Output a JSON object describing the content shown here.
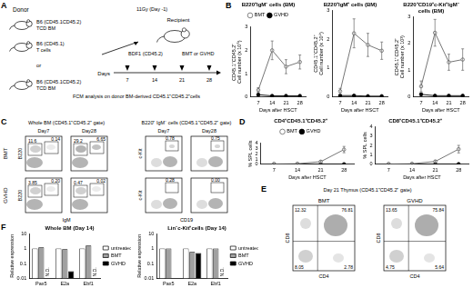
{
  "panel_labels": [
    "A",
    "B",
    "C",
    "D",
    "E",
    "F"
  ],
  "schematic": {
    "donor": "Donor",
    "recipient": "Recipient",
    "donor_groups": [
      [
        "B6 (CD45.1CD45.2)",
        "TCD BM"
      ],
      [
        "B6 (CD45.1)",
        "T cells"
      ],
      [
        "B6 (CD45.1CD45.2)",
        "TCD BM"
      ]
    ],
    "or": "or",
    "irradiation": "11Gy (Day -1)",
    "recipient_strain": "BDF1 (CD45.2)",
    "outcome": "BMT or GVHD",
    "timeline_label": "Days",
    "timeline_days": [
      7,
      14,
      21,
      28
    ],
    "analysis": "FCM analysis on donor BM-derived CD45.1⁺CD45.2⁺cells"
  },
  "flow_C": {
    "left": {
      "title": "Whole BM (CD45.1⁺CD45.2⁺ gate)",
      "x_axis": "IgM",
      "y_axis": "B220",
      "columns": [
        "Day7",
        "Day28"
      ],
      "rows": [
        "BMT",
        "GVHD"
      ],
      "gates": [
        [
          [
            "11.6",
            "0.14"
          ],
          [
            "29.2",
            "6.65"
          ]
        ],
        [
          [
            "3.85",
            "0.20"
          ],
          [
            "0.47",
            "0.02"
          ]
        ]
      ]
    },
    "right": {
      "title": "B220⁺ IgM⁻ cells (CD45.1⁺CD45.2⁺ gate)",
      "x_axis": "CD19",
      "y_axis": "c-Kit",
      "columns": [
        "Day7",
        "Day28"
      ],
      "rows": [
        "BMT",
        "GVHD"
      ],
      "gates": [
        [
          [
            "0.78"
          ],
          [
            "0.75"
          ]
        ],
        [
          [
            "0.28"
          ],
          [
            "0.00"
          ]
        ]
      ]
    }
  },
  "flow_E": {
    "title": "Day 21 Thymus (CD45.1⁺CD45.2⁺ gate)",
    "x_axis": "CD4",
    "y_axis": "CD8",
    "plots": [
      {
        "name": "BMT",
        "quadrants": {
          "ul": "12.32",
          "ur": "76.81",
          "ll": "8.05",
          "lr": "2.78"
        }
      },
      {
        "name": "GVHD",
        "quadrants": {
          "ul": "13.65",
          "ur": "75.84",
          "ll": "4.75",
          "lr": "5.64"
        }
      }
    ]
  },
  "chart_data": [
    {
      "type": "line",
      "title": "B220⁺IgM⁻ cells (BM)",
      "x_label": "Days after HSCT",
      "y_label": [
        "CD45.1⁺CD45.2⁺",
        "Cell number (x 10⁵)"
      ],
      "x": [
        7,
        14,
        21,
        28
      ],
      "xlim": [
        3,
        31
      ],
      "xticks": [
        7,
        14,
        21,
        28
      ],
      "ylim": [
        0,
        3
      ],
      "yticks": [
        0,
        1,
        2,
        3
      ],
      "grid": false,
      "legend": "top",
      "series": [
        {
          "name": "BMT",
          "color": "#666666",
          "marker": "open_circle",
          "line_style": "solid",
          "values": [
            0.3,
            2.0,
            1.3,
            1.5
          ],
          "errors": [
            0.1,
            0.4,
            0.3,
            0.3
          ]
        },
        {
          "name": "GVHD",
          "color": "#000000",
          "marker": "circle",
          "line_style": "solid",
          "values": [
            0.1,
            0.05,
            0.05,
            0.05
          ],
          "errors": [
            0.05,
            0.02,
            0.02,
            0.02
          ]
        }
      ]
    },
    {
      "type": "line",
      "title": "B220⁺IgM⁺ cells (BM)",
      "x_label": "Days after HSCT",
      "y_label": [
        "CD45.1⁺CD45.2⁺",
        "Cell number (x 10⁴)"
      ],
      "x": [
        7,
        14,
        21,
        28
      ],
      "xlim": [
        3,
        31
      ],
      "xticks": [
        7,
        14,
        21,
        28
      ],
      "ylim": [
        0,
        3
      ],
      "yticks": [
        0,
        1,
        2,
        3
      ],
      "grid": false,
      "series": [
        {
          "name": "BMT",
          "color": "#666666",
          "marker": "open_circle",
          "line_style": "solid",
          "values": [
            0.2,
            2.2,
            1.8,
            1.6
          ],
          "errors": [
            0.1,
            0.5,
            0.4,
            0.3
          ]
        },
        {
          "name": "GVHD",
          "color": "#000000",
          "marker": "circle",
          "line_style": "solid",
          "values": [
            0.05,
            0.05,
            0.03,
            0.03
          ],
          "errors": [
            0.02,
            0.02,
            0.02,
            0.02
          ]
        }
      ]
    },
    {
      "type": "line",
      "title": [
        "B220⁺CD19⁺c-Kit⁺IgM⁻",
        "cells (BM)"
      ],
      "x_label": "Days after HSCT",
      "y_label": [
        "CD45.1⁺CD45.2⁺",
        "Cell number (x 10³)"
      ],
      "x": [
        7,
        14,
        21,
        28
      ],
      "xlim": [
        3,
        31
      ],
      "xticks": [
        7,
        14,
        21,
        28
      ],
      "ylim": [
        0,
        3
      ],
      "yticks": [
        0,
        1,
        2,
        3
      ],
      "grid": false,
      "series": [
        {
          "name": "BMT",
          "color": "#666666",
          "marker": "open_circle",
          "line_style": "solid",
          "values": [
            0.4,
            2.4,
            1.3,
            1.4
          ],
          "errors": [
            0.2,
            0.5,
            0.3,
            0.4
          ]
        },
        {
          "name": "GVHD",
          "color": "#000000",
          "marker": "circle",
          "line_style": "solid",
          "values": [
            0.1,
            0.05,
            0.05,
            0.05
          ],
          "errors": [
            0.05,
            0.02,
            0.02,
            0.02
          ]
        }
      ]
    },
    {
      "type": "line",
      "title": "CD4⁺CD45.1⁺CD45.2⁺",
      "x_label": "Days after HSCT",
      "y_label": "% SPL cells",
      "x": [
        7,
        14,
        21,
        28
      ],
      "xlim": [
        3,
        31
      ],
      "xticks": [
        7,
        14,
        21,
        28
      ],
      "ylim": [
        0,
        4
      ],
      "yticks": [
        0,
        1,
        2,
        3,
        4
      ],
      "grid": false,
      "legend": "top",
      "series": [
        {
          "name": "BMT",
          "color": "#666666",
          "marker": "open_circle",
          "line_style": "solid",
          "values": [
            0.05,
            0.1,
            0.5,
            2.8
          ],
          "errors": [
            0.02,
            0.05,
            0.2,
            0.6
          ]
        },
        {
          "name": "GVHD",
          "color": "#000000",
          "marker": "circle",
          "line_style": "solid",
          "values": [
            0.02,
            0.02,
            0.03,
            0.02
          ],
          "errors": [
            0.01,
            0.01,
            0.01,
            0.01
          ]
        }
      ]
    },
    {
      "type": "line",
      "title": "CD8⁺CD45.1⁺CD45.2⁺",
      "x_label": "Days after HSCT",
      "y_label": "% SPL cells",
      "x": [
        7,
        14,
        21,
        28
      ],
      "xlim": [
        3,
        31
      ],
      "xticks": [
        7,
        14,
        21,
        28
      ],
      "ylim": [
        0,
        4
      ],
      "yticks": [
        0,
        1,
        2,
        3,
        4
      ],
      "grid": false,
      "series": [
        {
          "name": "BMT",
          "color": "#666666",
          "marker": "open_circle",
          "line_style": "solid",
          "values": [
            0.02,
            0.05,
            0.3,
            1.6
          ],
          "errors": [
            0.01,
            0.03,
            0.1,
            0.4
          ]
        },
        {
          "name": "GVHD",
          "color": "#000000",
          "marker": "circle",
          "line_style": "solid",
          "values": [
            0.01,
            0.02,
            0.02,
            0.02
          ],
          "errors": [
            0.01,
            0.01,
            0.01,
            0.01
          ]
        }
      ]
    },
    {
      "type": "bar",
      "title": "Whole BM (Day 14)",
      "y_label": "Relative expression",
      "categories": [
        "Pax5",
        "E2a",
        "Ebf1"
      ],
      "log": "y",
      "ylim": [
        0.01,
        10
      ],
      "yticks": [
        0.01,
        0.1,
        1,
        10
      ],
      "grid": false,
      "legend": "right",
      "series": [
        {
          "name": "untreated",
          "color": "#ffffff",
          "values": [
            1,
            1,
            1
          ]
        },
        {
          "name": "BMT",
          "color": "#a0a0a0",
          "values": [
            1.2,
            0.9,
            1.6
          ]
        },
        {
          "name": "GVHD",
          "color": "#000000",
          "values": [
            null,
            0.03,
            null
          ],
          "value_labels": [
            "N.D.",
            null,
            "N.D."
          ]
        }
      ]
    },
    {
      "type": "bar",
      "title": "Lin⁻c-Kit⁺cells (Day 14)",
      "y_label": "Relative expression",
      "categories": [
        "Pax5",
        "E2a",
        "Ebf1"
      ],
      "log": "y",
      "ylim": [
        0.01,
        10
      ],
      "yticks": [
        0.01,
        0.1,
        1,
        10
      ],
      "grid": false,
      "legend": "right",
      "series": [
        {
          "name": "untreated",
          "color": "#ffffff",
          "values": [
            1,
            1,
            1
          ]
        },
        {
          "name": "BMT",
          "color": "#a0a0a0",
          "values": [
            1,
            0.6,
            1
          ]
        },
        {
          "name": "GVHD",
          "color": "#000000",
          "values": [
            null,
            0.5,
            null
          ],
          "value_labels": [
            null,
            null,
            "N.D."
          ]
        }
      ]
    }
  ]
}
